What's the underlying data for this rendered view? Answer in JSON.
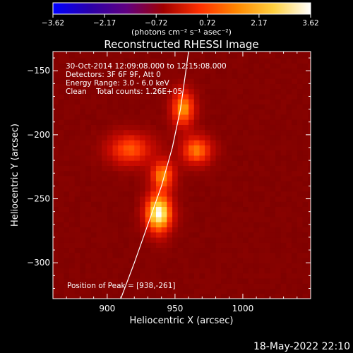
{
  "chart_data": {
    "type": "heatmap",
    "title": "Reconstructed RHESSI Image",
    "xlabel": "Heliocentric X (arcsec)",
    "ylabel": "Heliocentric Y (arcsec)",
    "xlim": [
      860,
      1050
    ],
    "ylim": [
      -328,
      -135
    ],
    "x_ticks": [
      900,
      950,
      1000
    ],
    "x_tick_labels": [
      "900",
      "950",
      "1000"
    ],
    "y_ticks": [
      -150,
      -200,
      -250,
      -300
    ],
    "y_tick_labels": [
      "−150",
      "−200",
      "−250",
      "−300"
    ],
    "colorbar": {
      "range": [
        -3.62,
        3.62
      ],
      "ticks": [
        -3.62,
        -2.17,
        -0.72,
        0.72,
        2.17,
        3.62
      ],
      "tick_labels": [
        "−3.62",
        "−2.17",
        "−0.72",
        "0.72",
        "2.17",
        "3.62"
      ],
      "unit_label": "(photons cm⁻² s⁻¹ asec⁻²)",
      "colors": [
        "#0000ff",
        "#2a00aa",
        "#600080",
        "#a00000",
        "#ff3000",
        "#ff8800",
        "#ffd040",
        "#ffffff"
      ]
    },
    "info": [
      "30-Oct-2014 12:09:08.000 to 12:15:08.000",
      "Detectors: 3F 6F 9F, Att 0",
      "Energy Range: 3.0 - 6.0 keV",
      "Clean    Total counts: 1.26E+05"
    ],
    "peak_label": "Position of Peak = [938,-261]",
    "sources": [
      {
        "x": 938,
        "y": -261,
        "sx": 7,
        "sy": 11,
        "amp": 3.62
      },
      {
        "x": 941,
        "y": -231,
        "sx": 6,
        "sy": 8,
        "amp": 2.3
      },
      {
        "x": 956,
        "y": -179,
        "sx": 6,
        "sy": 10,
        "amp": 2.5
      },
      {
        "x": 966,
        "y": -212,
        "sx": 8,
        "sy": 8,
        "amp": 2.2
      },
      {
        "x": 917,
        "y": -211,
        "sx": 12,
        "sy": 9,
        "amp": 1.9
      }
    ],
    "limb": [
      [
        910,
        -328
      ],
      [
        920,
        -300
      ],
      [
        930,
        -270
      ],
      [
        940,
        -240
      ],
      [
        948,
        -210
      ],
      [
        954,
        -180
      ],
      [
        958,
        -150
      ],
      [
        960,
        -135
      ]
    ],
    "background_level": 0.9,
    "bottom_timestamp": "18-May-2022 22:10"
  }
}
